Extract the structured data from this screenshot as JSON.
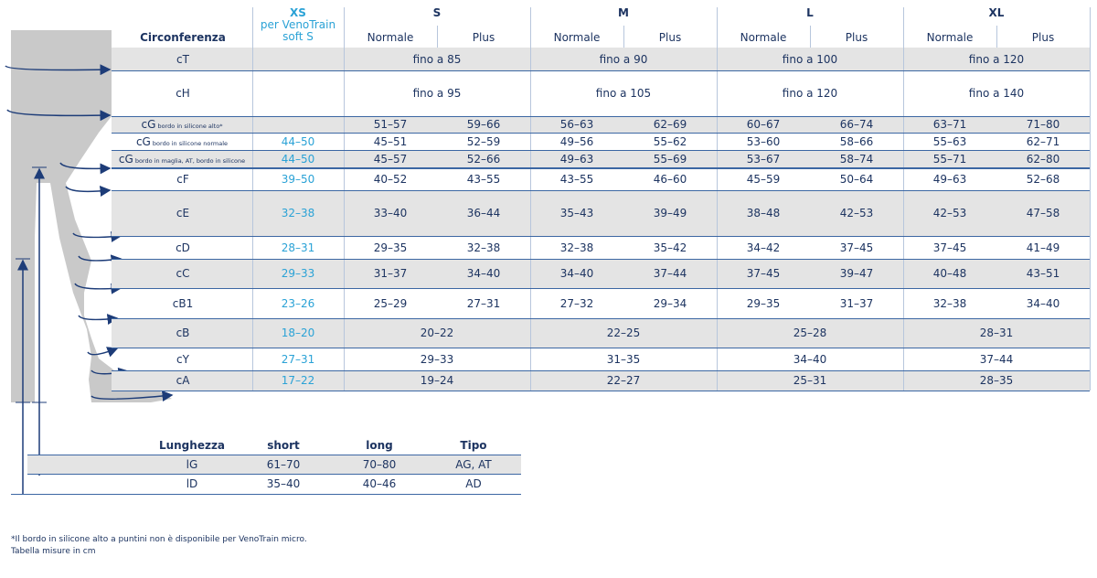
{
  "header": {
    "label": "Circonferenza",
    "xs": {
      "name": "XS",
      "note": "per VenoTrain soft S"
    },
    "sizes": [
      {
        "name": "S",
        "sub": [
          "Normale",
          "Plus"
        ]
      },
      {
        "name": "M",
        "sub": [
          "Normale",
          "Plus"
        ]
      },
      {
        "name": "L",
        "sub": [
          "Normale",
          "Plus"
        ]
      },
      {
        "name": "XL",
        "sub": [
          "Normale",
          "Plus"
        ]
      }
    ]
  },
  "rows": [
    {
      "label": "cT",
      "cells": [
        "fino a 85",
        "fino a 90",
        "fino a 100",
        "fino a 120"
      ]
    },
    {
      "label": "cH",
      "cells": [
        "fino a 95",
        "fino a 105",
        "fino a 120",
        "fino a 140"
      ]
    },
    {
      "label": "cG",
      "note": "bordo in silicone alto*",
      "cells": [
        "51–57",
        "59–66",
        "56–63",
        "62–69",
        "60–67",
        "66–74",
        "63–71",
        "71–80"
      ]
    },
    {
      "label": "cG",
      "note": "bordo in silicone normale",
      "xs": "44–50",
      "cells": [
        "45–51",
        "52–59",
        "49–56",
        "55–62",
        "53–60",
        "58–66",
        "55–63",
        "62–71"
      ]
    },
    {
      "label": "cG",
      "note": "bordo in maglia, AT, bordo in silicone",
      "xs": "44–50",
      "cells": [
        "45–57",
        "52–66",
        "49–63",
        "55–69",
        "53–67",
        "58–74",
        "55–71",
        "62–80"
      ]
    },
    {
      "label": "cF",
      "xs": "39–50",
      "cells": [
        "40–52",
        "43–55",
        "43–55",
        "46–60",
        "45–59",
        "50–64",
        "49–63",
        "52–68"
      ]
    },
    {
      "label": "cE",
      "xs": "32–38",
      "cells": [
        "33–40",
        "36–44",
        "35–43",
        "39–49",
        "38–48",
        "42–53",
        "42–53",
        "47–58"
      ]
    },
    {
      "label": "cD",
      "xs": "28–31",
      "cells": [
        "29–35",
        "32–38",
        "32–38",
        "35–42",
        "34–42",
        "37–45",
        "37–45",
        "41–49"
      ]
    },
    {
      "label": "cC",
      "xs": "29–33",
      "cells": [
        "31–37",
        "34–40",
        "34–40",
        "37–44",
        "37–45",
        "39–47",
        "40–48",
        "43–51"
      ]
    },
    {
      "label": "cB1",
      "xs": "23–26",
      "cells": [
        "25–29",
        "27–31",
        "27–32",
        "29–34",
        "29–35",
        "31–37",
        "32–38",
        "34–40"
      ]
    },
    {
      "label": "cB",
      "xs": "18–20",
      "cells": [
        "20–22",
        "22–25",
        "25–28",
        "28–31"
      ]
    },
    {
      "label": "cY",
      "xs": "27–31",
      "cells": [
        "29–33",
        "31–35",
        "34–40",
        "37–44"
      ]
    },
    {
      "label": "cA",
      "xs": "17–22",
      "cells": [
        "19–24",
        "22–27",
        "25–31",
        "28–35"
      ]
    }
  ],
  "lengths": {
    "header": [
      "Lunghezza",
      "short",
      "long",
      "Tipo"
    ],
    "rows": [
      [
        "lG",
        "61–70",
        "70–80",
        "AG, AT"
      ],
      [
        "lD",
        "35–40",
        "40–46",
        "AD"
      ]
    ]
  },
  "footnotes": [
    "*Il bordo in silicone alto a puntini non è disponibile per VenoTrain micro.",
    "Tabella misure in cm"
  ]
}
